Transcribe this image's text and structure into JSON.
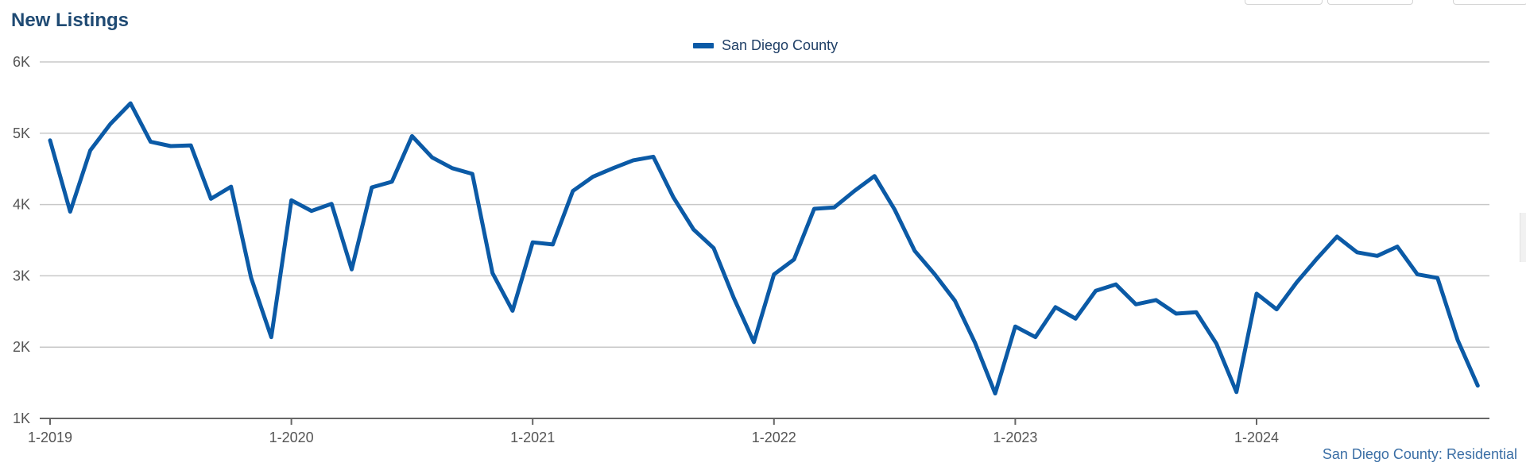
{
  "header": {
    "title": "New Listings"
  },
  "footer": {
    "source": "San Diego County: Residential"
  },
  "chart_data": {
    "type": "line",
    "title": "New Listings",
    "xlabel": "",
    "ylabel": "",
    "ylim": [
      1000,
      6000
    ],
    "yticks": [
      1000,
      2000,
      3000,
      4000,
      5000,
      6000
    ],
    "ytick_labels": [
      "1K",
      "2K",
      "3K",
      "4K",
      "5K",
      "6K"
    ],
    "xticks": [
      "1-2019",
      "1-2020",
      "1-2021",
      "1-2022",
      "1-2023",
      "1-2024"
    ],
    "grid": true,
    "legend_position": "top-center",
    "series": [
      {
        "name": "San Diego County",
        "color": "#0b5aa6",
        "x": [
          "1-2019",
          "2-2019",
          "3-2019",
          "4-2019",
          "5-2019",
          "6-2019",
          "7-2019",
          "8-2019",
          "9-2019",
          "10-2019",
          "11-2019",
          "12-2019",
          "1-2020",
          "2-2020",
          "3-2020",
          "4-2020",
          "5-2020",
          "6-2020",
          "7-2020",
          "8-2020",
          "9-2020",
          "10-2020",
          "11-2020",
          "12-2020",
          "1-2021",
          "2-2021",
          "3-2021",
          "4-2021",
          "5-2021",
          "6-2021",
          "7-2021",
          "8-2021",
          "9-2021",
          "10-2021",
          "11-2021",
          "12-2021",
          "1-2022",
          "2-2022",
          "3-2022",
          "4-2022",
          "5-2022",
          "6-2022",
          "7-2022",
          "8-2022",
          "9-2022",
          "10-2022",
          "11-2022",
          "12-2022",
          "1-2023",
          "2-2023",
          "3-2023",
          "4-2023",
          "5-2023",
          "6-2023",
          "7-2023",
          "8-2023",
          "9-2023",
          "10-2023",
          "11-2023",
          "12-2023",
          "1-2024",
          "2-2024",
          "3-2024",
          "4-2024",
          "5-2024",
          "6-2024",
          "7-2024",
          "8-2024",
          "9-2024",
          "10-2024",
          "11-2024",
          "12-2024"
        ],
        "values": [
          4900,
          3900,
          4760,
          5130,
          5420,
          4880,
          4820,
          4830,
          4080,
          4250,
          2970,
          2140,
          4060,
          3910,
          4010,
          3090,
          4240,
          4320,
          4960,
          4660,
          4510,
          4430,
          3040,
          2510,
          3470,
          3440,
          4190,
          4390,
          4510,
          4620,
          4670,
          4100,
          3650,
          3390,
          2690,
          2070,
          3020,
          3230,
          3940,
          3960,
          4190,
          4400,
          3930,
          3350,
          3020,
          2650,
          2060,
          1350,
          2290,
          2140,
          2560,
          2400,
          2790,
          2880,
          2600,
          2660,
          2470,
          2490,
          2050,
          1370,
          2750,
          2530,
          2910,
          3240,
          3550,
          3330,
          3280,
          3410,
          3020,
          2970,
          2100,
          1460
        ]
      }
    ]
  }
}
